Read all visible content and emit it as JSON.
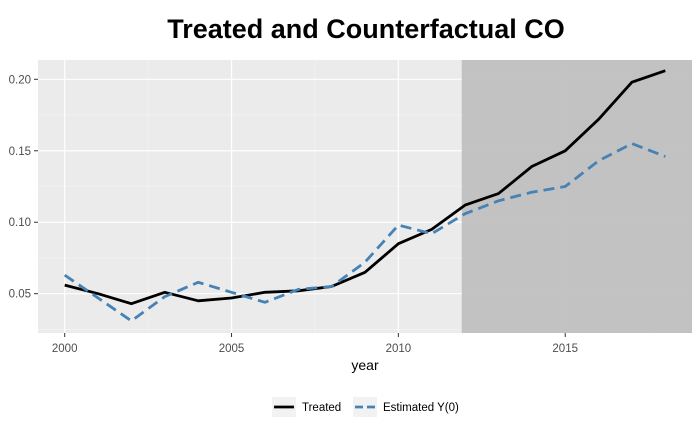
{
  "chart_data": {
    "type": "line",
    "title": "Treated and Counterfactual CO",
    "xlabel": "year",
    "ylabel": "",
    "xlim": [
      1999.2,
      2018.8
    ],
    "ylim": [
      0.0225,
      0.2135
    ],
    "x_ticks": [
      2000,
      2005,
      2010,
      2015
    ],
    "y_ticks": [
      0.05,
      0.1,
      0.15,
      0.2
    ],
    "y_tick_labels": [
      "0.05",
      "0.10",
      "0.15",
      "0.20"
    ],
    "grid": true,
    "legend_position": "bottom",
    "shaded_region": {
      "x_start": 2011.9,
      "x_end": 2018.8,
      "color": "#bebebe"
    },
    "series": [
      {
        "name": "Treated",
        "color": "#000000",
        "style": "solid",
        "x": [
          2000,
          2001,
          2002,
          2003,
          2004,
          2005,
          2006,
          2007,
          2008,
          2009,
          2010,
          2011,
          2012,
          2013,
          2014,
          2015,
          2016,
          2017,
          2018
        ],
        "y": [
          0.056,
          0.05,
          0.043,
          0.051,
          0.045,
          0.047,
          0.051,
          0.052,
          0.055,
          0.065,
          0.085,
          0.095,
          0.112,
          0.12,
          0.139,
          0.15,
          0.172,
          0.198,
          0.206
        ]
      },
      {
        "name": "Estimated Y(0)",
        "color": "#4682b4",
        "style": "dashed",
        "x": [
          2000,
          2001,
          2002,
          2003,
          2004,
          2005,
          2006,
          2007,
          2008,
          2009,
          2010,
          2011,
          2012,
          2013,
          2014,
          2015,
          2016,
          2017,
          2018
        ],
        "y": [
          0.063,
          0.047,
          0.031,
          0.048,
          0.058,
          0.051,
          0.044,
          0.053,
          0.055,
          0.072,
          0.098,
          0.092,
          0.106,
          0.115,
          0.121,
          0.125,
          0.143,
          0.155,
          0.146
        ]
      }
    ]
  }
}
